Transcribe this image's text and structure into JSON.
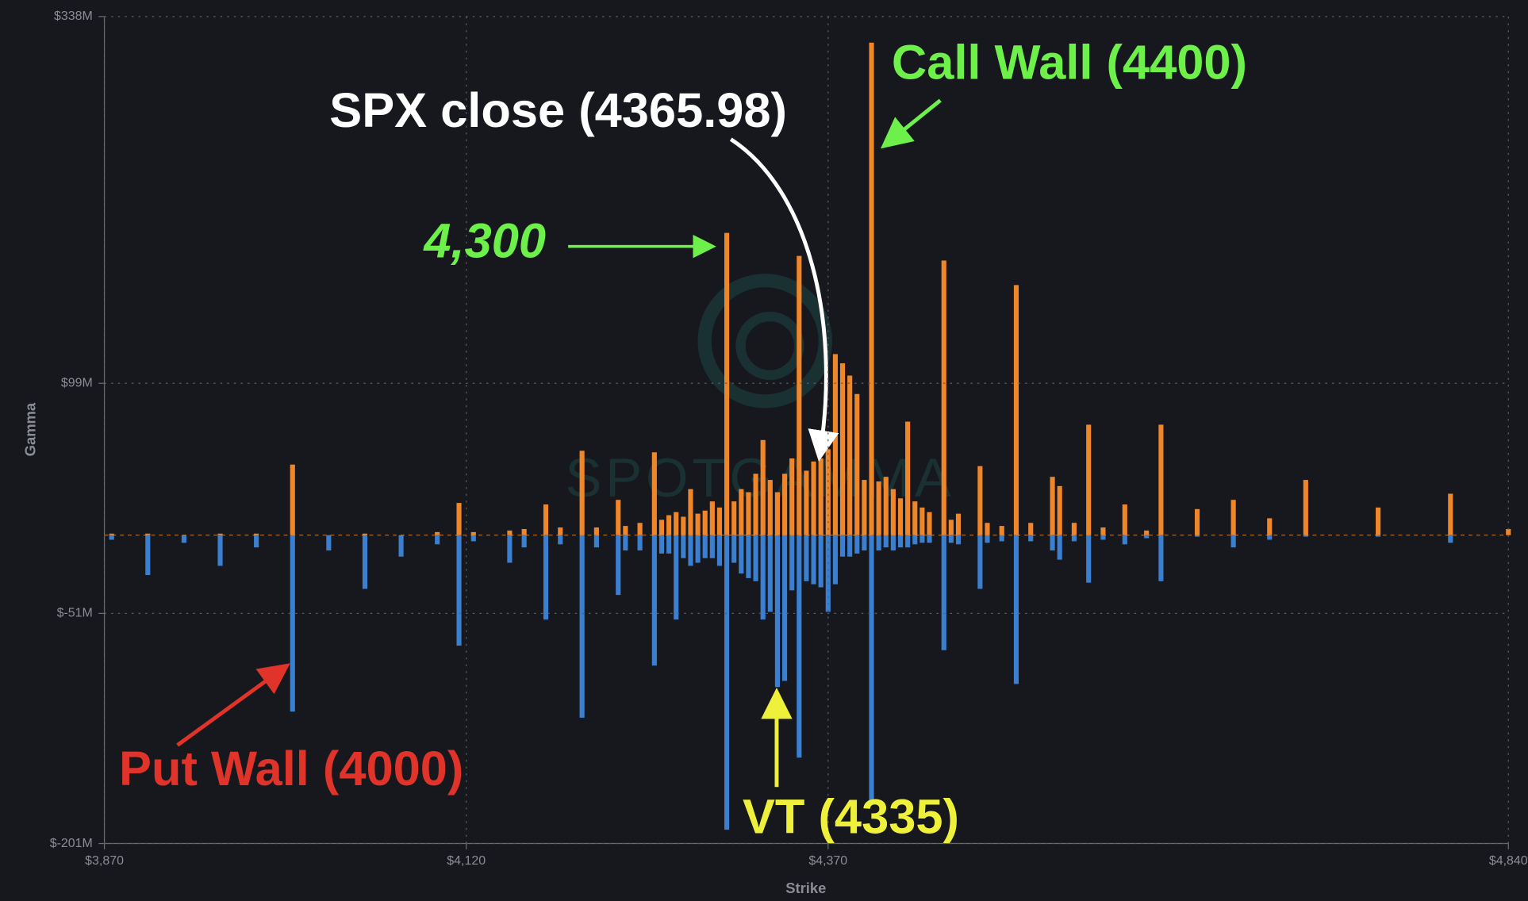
{
  "chart_data": {
    "type": "bar",
    "x_label": "Strike",
    "y_label": "Gamma",
    "watermark": "SPOTGAMMA",
    "x": [
      3875,
      3900,
      3925,
      3950,
      3975,
      4000,
      4025,
      4050,
      4075,
      4100,
      4115,
      4125,
      4150,
      4160,
      4175,
      4185,
      4200,
      4210,
      4225,
      4230,
      4240,
      4250,
      4255,
      4260,
      4265,
      4270,
      4275,
      4280,
      4285,
      4290,
      4295,
      4300,
      4305,
      4310,
      4315,
      4320,
      4325,
      4330,
      4335,
      4340,
      4345,
      4350,
      4355,
      4360,
      4365,
      4370,
      4375,
      4380,
      4385,
      4390,
      4395,
      4400,
      4405,
      4410,
      4415,
      4420,
      4425,
      4430,
      4435,
      4440,
      4450,
      4455,
      4460,
      4475,
      4480,
      4490,
      4500,
      4510,
      4525,
      4530,
      4540,
      4550,
      4560,
      4575,
      4590,
      4600,
      4625,
      4650,
      4675,
      4700,
      4750,
      4800,
      4840
    ],
    "series": [
      {
        "color": "#f0862a",
        "values": [
          1,
          1,
          0,
          1,
          1,
          46,
          0,
          1,
          0,
          2,
          21,
          2,
          3,
          4,
          20,
          5,
          55,
          5,
          23,
          6,
          8,
          54,
          10,
          13,
          15,
          12,
          30,
          14,
          16,
          22,
          18,
          197,
          22,
          30,
          28,
          40,
          62,
          36,
          28,
          40,
          50,
          182,
          42,
          48,
          50,
          56,
          118,
          112,
          104,
          92,
          36,
          321,
          35,
          38,
          30,
          24,
          74,
          22,
          18,
          15,
          179,
          10,
          14,
          45,
          8,
          6,
          163,
          8,
          38,
          32,
          8,
          72,
          5,
          20,
          3,
          72,
          17,
          23,
          11,
          36,
          18,
          27,
          4
        ]
      },
      {
        "color": "#3a7fd0",
        "values": [
          -3,
          -26,
          -5,
          -20,
          -8,
          -115,
          -10,
          -35,
          -14,
          -6,
          -72,
          -4,
          -18,
          -8,
          -55,
          -6,
          -119,
          -8,
          -39,
          -10,
          -10,
          -85,
          -12,
          -12,
          -55,
          -15,
          -20,
          -18,
          -15,
          -15,
          -20,
          -192,
          -18,
          -25,
          -28,
          -30,
          -55,
          -50,
          -99,
          -95,
          -36,
          -145,
          -30,
          -32,
          -34,
          -50,
          -32,
          -14,
          -14,
          -12,
          -10,
          -175,
          -10,
          -8,
          -10,
          -8,
          -8,
          -6,
          -5,
          -5,
          -75,
          -5,
          -6,
          -35,
          -5,
          -4,
          -97,
          -4,
          -10,
          -16,
          -4,
          -31,
          -3,
          -6,
          -2,
          -30,
          -1,
          -8,
          -3,
          -1,
          -1,
          -5,
          0
        ]
      }
    ],
    "xlim": [
      3870,
      4840
    ],
    "ylim": [
      -201,
      338
    ],
    "xticks": [
      {
        "value": 3870,
        "label": "$3,870"
      },
      {
        "value": 4120,
        "label": "$4,120"
      },
      {
        "value": 4370,
        "label": "$4,370"
      },
      {
        "value": 4840,
        "label": "$4,840"
      }
    ],
    "yticks": [
      {
        "value": -201,
        "label": "$-201M"
      },
      {
        "value": -51,
        "label": "$-51M"
      },
      {
        "value": 99,
        "label": "$99M"
      },
      {
        "value": 338,
        "label": "$338M"
      }
    ],
    "grid": true,
    "annotations": [
      {
        "text": "SPX close (4365.98)",
        "color": "#ffffff"
      },
      {
        "text": "Call Wall (4400)",
        "color": "#6ef04a"
      },
      {
        "text": "4,300",
        "color": "#6ef04a"
      },
      {
        "text": "Put Wall (4000)",
        "color": "#e0342a"
      },
      {
        "text": "VT (4335)",
        "color": "#eef03a"
      }
    ]
  }
}
